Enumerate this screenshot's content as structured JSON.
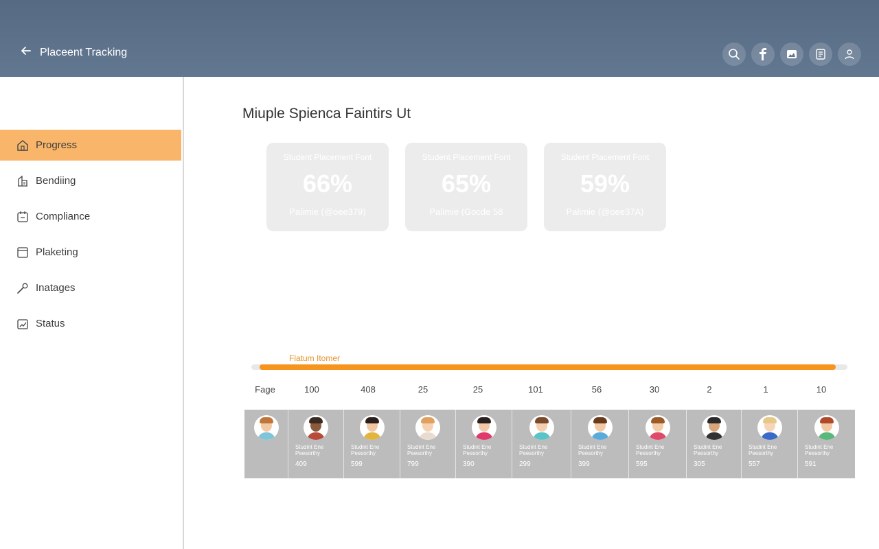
{
  "header": {
    "title": "Placeent Tracking",
    "icons": [
      "search-icon",
      "facebook-icon",
      "image-icon",
      "document-icon",
      "user-icon"
    ]
  },
  "sidebar": {
    "items": [
      {
        "label": "Progress",
        "icon": "home-icon",
        "active": true
      },
      {
        "label": "Bendiing",
        "icon": "building-icon",
        "active": false
      },
      {
        "label": "Compliance",
        "icon": "clipboard-icon",
        "active": false
      },
      {
        "label": "Plaketing",
        "icon": "folder-icon",
        "active": false
      },
      {
        "label": "Inatages",
        "icon": "wrench-icon",
        "active": false
      },
      {
        "label": "Status",
        "icon": "chart-icon",
        "active": false
      }
    ]
  },
  "main": {
    "title": "Miuple Spienca Faintirs Ut",
    "cards": [
      {
        "label": "Student Placement Font",
        "value": "66%",
        "sub": "Palimie (@oee379)"
      },
      {
        "label": "Student Placement Font",
        "value": "65%",
        "sub": "Palimie (Gocde 58"
      },
      {
        "label": "Student Placement Font",
        "value": "59%",
        "sub": "Palimie (@oee37A)"
      }
    ],
    "progress": {
      "label": "Flatum Itomer",
      "value_percent": 98
    }
  },
  "table": {
    "row_label": "Fage",
    "numbers": [
      "100",
      "408",
      "25",
      "25",
      "101",
      "56",
      "30",
      "2",
      "1",
      "10"
    ],
    "students": [
      {
        "name": "",
        "count": "",
        "skin": "#f2c9a5",
        "hair": "#c0763a",
        "shirt": "#7fc4d8"
      },
      {
        "name": "Studint Ene Peesorthy",
        "count": "409",
        "skin": "#8a5a3c",
        "hair": "#3a2a20",
        "shirt": "#b84a3a"
      },
      {
        "name": "Studint Ene Peesorthy",
        "count": "599",
        "skin": "#f0c7a0",
        "hair": "#2a1f1a",
        "shirt": "#e2b440"
      },
      {
        "name": "Studint Ene Peesorthy",
        "count": "799",
        "skin": "#f6d2b4",
        "hair": "#e0a060",
        "shirt": "#e8dcd0"
      },
      {
        "name": "Studint Ene Peesorthy",
        "count": "390",
        "skin": "#f2c8a8",
        "hair": "#2a2020",
        "shirt": "#e03a6a"
      },
      {
        "name": "Studint Ene Peesorthy",
        "count": "299",
        "skin": "#f4cfb0",
        "hair": "#7a4a2a",
        "shirt": "#5bc4c8"
      },
      {
        "name": "Studint Ene Peesorthy",
        "count": "399",
        "skin": "#f2c9a5",
        "hair": "#6a3a1a",
        "shirt": "#5aaadc"
      },
      {
        "name": "Studint Ene Peesorthy",
        "count": "595",
        "skin": "#f4cda8",
        "hair": "#9a5a2a",
        "shirt": "#e04a6a"
      },
      {
        "name": "Studint Ene Peesorthy",
        "count": "305",
        "skin": "#d8a57a",
        "hair": "#2a2a2a",
        "shirt": "#333333"
      },
      {
        "name": "Studint Ene Peesorthy",
        "count": "557",
        "skin": "#f6d6b8",
        "hair": "#e8c888",
        "shirt": "#3a6ac8"
      },
      {
        "name": "Studint Ene Peesorthy",
        "count": "591",
        "skin": "#f2c9a5",
        "hair": "#b04a2a",
        "shirt": "#5ab87a"
      }
    ]
  }
}
